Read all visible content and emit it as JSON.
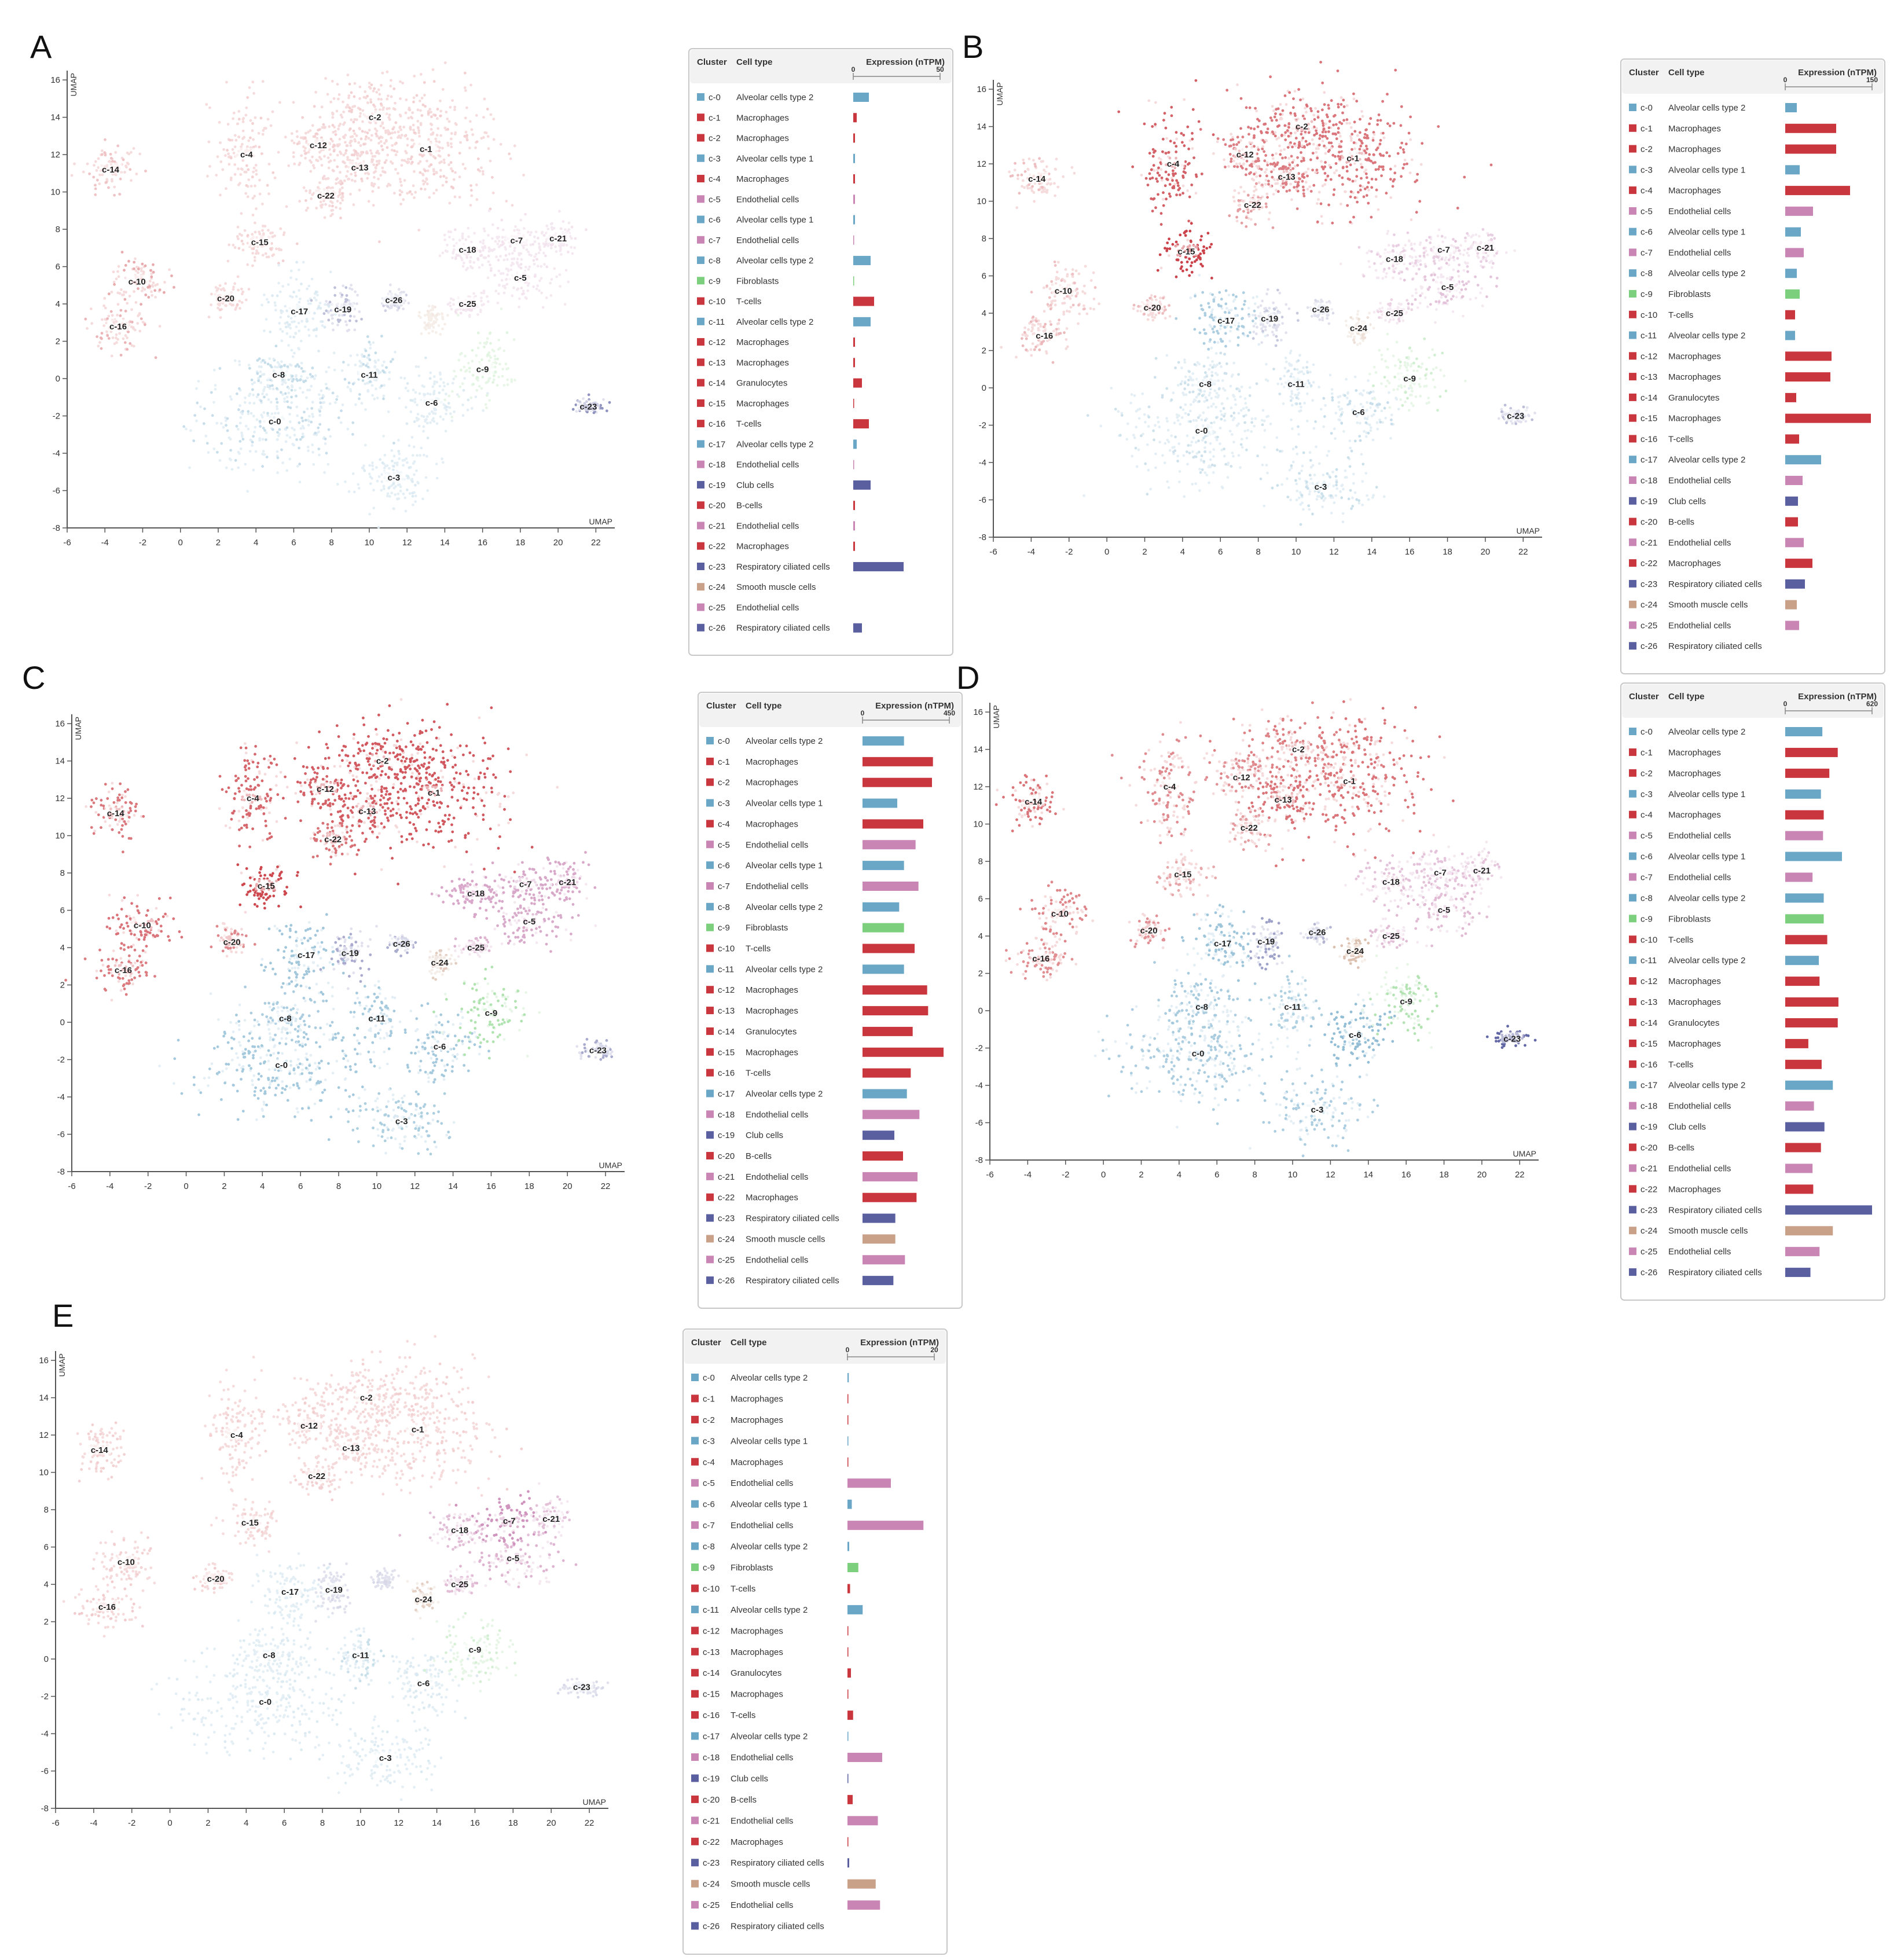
{
  "figure": {
    "umap_axis_label": "UMAP",
    "x_ticks": [
      -6,
      -4,
      -2,
      0,
      2,
      4,
      6,
      8,
      10,
      12,
      14,
      16,
      18,
      20,
      22
    ],
    "y_ticks": [
      -8,
      -6,
      -4,
      -2,
      0,
      2,
      4,
      6,
      8,
      10,
      12,
      14,
      16
    ],
    "table_header_cluster": "Cluster",
    "table_header_celltype": "Cell type",
    "table_header_expression": "Expression (nTPM)"
  },
  "colors": {
    "alveolar": "#6aa6c6",
    "immune": "#c9363e",
    "endothelial": "#c985b4",
    "fibroblast": "#7ccf7c",
    "club_ciliated": "#5a5fa0",
    "smooth_muscle": "#c9a088"
  },
  "clusters": [
    {
      "id": "c-0",
      "cell_type": "Alveolar cells type 2",
      "group": "alveolar",
      "cx": 5.0,
      "cy": -2.3,
      "rx": 4.2,
      "ry": 2.5
    },
    {
      "id": "c-1",
      "cell_type": "Macrophages",
      "group": "immune",
      "cx": 13.0,
      "cy": 12.3,
      "rx": 3.8,
      "ry": 3.0
    },
    {
      "id": "c-2",
      "cell_type": "Macrophages",
      "group": "immune",
      "cx": 10.3,
      "cy": 14.0,
      "rx": 3.4,
      "ry": 1.8
    },
    {
      "id": "c-3",
      "cell_type": "Alveolar cells type 1",
      "group": "alveolar",
      "cx": 11.3,
      "cy": -5.3,
      "rx": 2.4,
      "ry": 1.5
    },
    {
      "id": "c-4",
      "cell_type": "Macrophages",
      "group": "immune",
      "cx": 3.5,
      "cy": 12.0,
      "rx": 1.4,
      "ry": 2.5
    },
    {
      "id": "c-5",
      "cell_type": "Endothelial cells",
      "group": "endothelial",
      "cx": 18.0,
      "cy": 5.4,
      "rx": 2.0,
      "ry": 1.3
    },
    {
      "id": "c-6",
      "cell_type": "Alveolar cells type 1",
      "group": "alveolar",
      "cx": 13.3,
      "cy": -1.3,
      "rx": 1.7,
      "ry": 1.6
    },
    {
      "id": "c-7",
      "cell_type": "Endothelial cells",
      "group": "endothelial",
      "cx": 17.8,
      "cy": 7.4,
      "rx": 1.6,
      "ry": 1.0
    },
    {
      "id": "c-8",
      "cell_type": "Alveolar cells type 2",
      "group": "alveolar",
      "cx": 5.2,
      "cy": 0.2,
      "rx": 1.8,
      "ry": 1.4
    },
    {
      "id": "c-9",
      "cell_type": "Fibroblasts",
      "group": "fibroblast",
      "cx": 16.0,
      "cy": 0.5,
      "rx": 1.6,
      "ry": 1.6
    },
    {
      "id": "c-10",
      "cell_type": "T-cells",
      "group": "immune",
      "cx": -2.3,
      "cy": 5.2,
      "rx": 1.4,
      "ry": 1.2
    },
    {
      "id": "c-11",
      "cell_type": "Alveolar cells type 2",
      "group": "alveolar",
      "cx": 10.0,
      "cy": 0.2,
      "rx": 1.0,
      "ry": 1.4
    },
    {
      "id": "c-12",
      "cell_type": "Macrophages",
      "group": "immune",
      "cx": 7.3,
      "cy": 12.5,
      "rx": 1.4,
      "ry": 1.2
    },
    {
      "id": "c-13",
      "cell_type": "Macrophages",
      "group": "immune",
      "cx": 9.5,
      "cy": 11.3,
      "rx": 1.5,
      "ry": 1.2
    },
    {
      "id": "c-14",
      "cell_type": "Granulocytes",
      "group": "immune",
      "cx": -3.7,
      "cy": 11.2,
      "rx": 1.2,
      "ry": 1.2
    },
    {
      "id": "c-15",
      "cell_type": "Macrophages",
      "group": "immune",
      "cx": 4.2,
      "cy": 7.3,
      "rx": 1.2,
      "ry": 1.0
    },
    {
      "id": "c-16",
      "cell_type": "T-cells",
      "group": "immune",
      "cx": -3.3,
      "cy": 2.8,
      "rx": 1.3,
      "ry": 1.1
    },
    {
      "id": "c-17",
      "cell_type": "Alveolar cells type 2",
      "group": "alveolar",
      "cx": 6.3,
      "cy": 3.6,
      "rx": 1.7,
      "ry": 1.7
    },
    {
      "id": "c-18",
      "cell_type": "Endothelial cells",
      "group": "endothelial",
      "cx": 15.2,
      "cy": 6.9,
      "rx": 1.5,
      "ry": 1.0
    },
    {
      "id": "c-19",
      "cell_type": "Club cells",
      "group": "club_ciliated",
      "cx": 8.6,
      "cy": 3.7,
      "rx": 0.9,
      "ry": 1.2
    },
    {
      "id": "c-20",
      "cell_type": "B-cells",
      "group": "immune",
      "cx": 2.4,
      "cy": 4.3,
      "rx": 0.8,
      "ry": 0.7
    },
    {
      "id": "c-21",
      "cell_type": "Endothelial cells",
      "group": "endothelial",
      "cx": 20.0,
      "cy": 7.5,
      "rx": 1.0,
      "ry": 0.9
    },
    {
      "id": "c-22",
      "cell_type": "Macrophages",
      "group": "immune",
      "cx": 7.7,
      "cy": 9.8,
      "rx": 1.0,
      "ry": 0.9
    },
    {
      "id": "c-23",
      "cell_type": "Respiratory ciliated cells",
      "group": "club_ciliated",
      "cx": 21.6,
      "cy": -1.5,
      "rx": 0.8,
      "ry": 0.4
    },
    {
      "id": "c-24",
      "cell_type": "Smooth muscle cells",
      "group": "smooth_muscle",
      "cx": 13.3,
      "cy": 3.2,
      "rx": 0.6,
      "ry": 0.7
    },
    {
      "id": "c-25",
      "cell_type": "Endothelial cells",
      "group": "endothelial",
      "cx": 15.2,
      "cy": 4.0,
      "rx": 0.8,
      "ry": 0.5
    },
    {
      "id": "c-26",
      "cell_type": "Respiratory ciliated cells",
      "group": "club_ciliated",
      "cx": 11.3,
      "cy": 4.2,
      "rx": 0.6,
      "ry": 0.5
    }
  ],
  "chart_data": [
    {
      "type": "scatter+bar",
      "panel": "A",
      "xlabel": "UMAP",
      "ylabel": "UMAP",
      "xlim": [
        -6,
        23
      ],
      "ylim": [
        -8,
        16.5
      ],
      "expression_axis_max": 50,
      "expression_nTPM": [
        9,
        2,
        1,
        1,
        1,
        1,
        1,
        0.3,
        10,
        0.4,
        12,
        10,
        1,
        1,
        5,
        0.2,
        9,
        2,
        0.2,
        10,
        1,
        1,
        1,
        29,
        0,
        0,
        5
      ],
      "cluster_label_ids": [
        "c-0",
        "c-1",
        "c-2",
        "c-3",
        "c-4",
        "c-5",
        "c-6",
        "c-7",
        "c-8",
        "c-9",
        "c-10",
        "c-11",
        "c-12",
        "c-13",
        "c-14",
        "c-15",
        "c-16",
        "c-17",
        "c-18",
        "c-19",
        "c-20",
        "c-21",
        "c-22",
        "c-23",
        "c-25",
        "c-26"
      ],
      "table_rows": 27
    },
    {
      "type": "scatter+bar",
      "panel": "B",
      "xlabel": "UMAP",
      "ylabel": "UMAP",
      "xlim": [
        -6,
        23
      ],
      "ylim": [
        -8,
        16.5
      ],
      "expression_axis_max": 150,
      "expression_nTPM": [
        20,
        88,
        88,
        25,
        112,
        48,
        27,
        32,
        20,
        25,
        17,
        17,
        80,
        78,
        19,
        148,
        24,
        62,
        30,
        22,
        22,
        32,
        47,
        34,
        20,
        24,
        0
      ],
      "cluster_label_ids": [
        "c-0",
        "c-1",
        "c-2",
        "c-3",
        "c-4",
        "c-5",
        "c-6",
        "c-7",
        "c-8",
        "c-9",
        "c-10",
        "c-11",
        "c-12",
        "c-13",
        "c-14",
        "c-15",
        "c-16",
        "c-17",
        "c-18",
        "c-19",
        "c-20",
        "c-21",
        "c-22",
        "c-23",
        "c-24",
        "c-25",
        "c-26"
      ],
      "table_rows": 27
    },
    {
      "type": "scatter+bar",
      "panel": "C",
      "xlabel": "UMAP",
      "ylabel": "UMAP",
      "xlim": [
        -6,
        23
      ],
      "ylim": [
        -8,
        16.5
      ],
      "expression_axis_max": 450,
      "expression_nTPM": [
        215,
        365,
        360,
        180,
        315,
        275,
        215,
        290,
        190,
        215,
        270,
        215,
        335,
        340,
        260,
        420,
        250,
        230,
        295,
        165,
        210,
        285,
        280,
        170,
        170,
        220,
        160
      ],
      "cluster_label_ids": [
        "c-0",
        "c-1",
        "c-2",
        "c-3",
        "c-4",
        "c-5",
        "c-6",
        "c-7",
        "c-8",
        "c-9",
        "c-10",
        "c-11",
        "c-12",
        "c-13",
        "c-14",
        "c-15",
        "c-16",
        "c-17",
        "c-18",
        "c-19",
        "c-20",
        "c-21",
        "c-22",
        "c-23",
        "c-24",
        "c-25",
        "c-26"
      ],
      "table_rows": 27
    },
    {
      "type": "scatter+bar",
      "panel": "D",
      "xlabel": "UMAP",
      "ylabel": "UMAP",
      "xlim": [
        -6,
        23
      ],
      "ylim": [
        -8,
        16.5
      ],
      "expression_axis_max": 620,
      "expression_nTPM": [
        265,
        375,
        315,
        255,
        275,
        270,
        405,
        195,
        275,
        275,
        300,
        240,
        245,
        380,
        375,
        165,
        260,
        340,
        205,
        280,
        255,
        195,
        200,
        620,
        340,
        245,
        180
      ],
      "cluster_label_ids": [
        "c-0",
        "c-1",
        "c-2",
        "c-3",
        "c-4",
        "c-5",
        "c-6",
        "c-7",
        "c-8",
        "c-9",
        "c-10",
        "c-11",
        "c-12",
        "c-13",
        "c-14",
        "c-15",
        "c-16",
        "c-17",
        "c-18",
        "c-19",
        "c-20",
        "c-21",
        "c-22",
        "c-23",
        "c-24",
        "c-25",
        "c-26"
      ],
      "table_rows": 27
    },
    {
      "type": "scatter+bar",
      "panel": "E",
      "xlabel": "UMAP",
      "ylabel": "UMAP",
      "xlim": [
        -6,
        23
      ],
      "ylim": [
        -8,
        16.5
      ],
      "expression_axis_max": 20,
      "expression_nTPM": [
        0.3,
        0.2,
        0.2,
        0.1,
        0.2,
        10,
        1,
        17.5,
        0.4,
        2.5,
        0.6,
        3.5,
        0.2,
        0.2,
        0.8,
        0.1,
        1.3,
        0.1,
        8,
        0.1,
        1.2,
        7,
        0.1,
        0.4,
        6.5,
        7.5,
        0
      ],
      "cluster_label_ids": [
        "c-0",
        "c-1",
        "c-2",
        "c-3",
        "c-4",
        "c-5",
        "c-6",
        "c-7",
        "c-8",
        "c-9",
        "c-10",
        "c-11",
        "c-12",
        "c-13",
        "c-14",
        "c-15",
        "c-16",
        "c-17",
        "c-18",
        "c-19",
        "c-20",
        "c-21",
        "c-22",
        "c-23",
        "c-24",
        "c-25"
      ],
      "table_rows": 27
    }
  ]
}
